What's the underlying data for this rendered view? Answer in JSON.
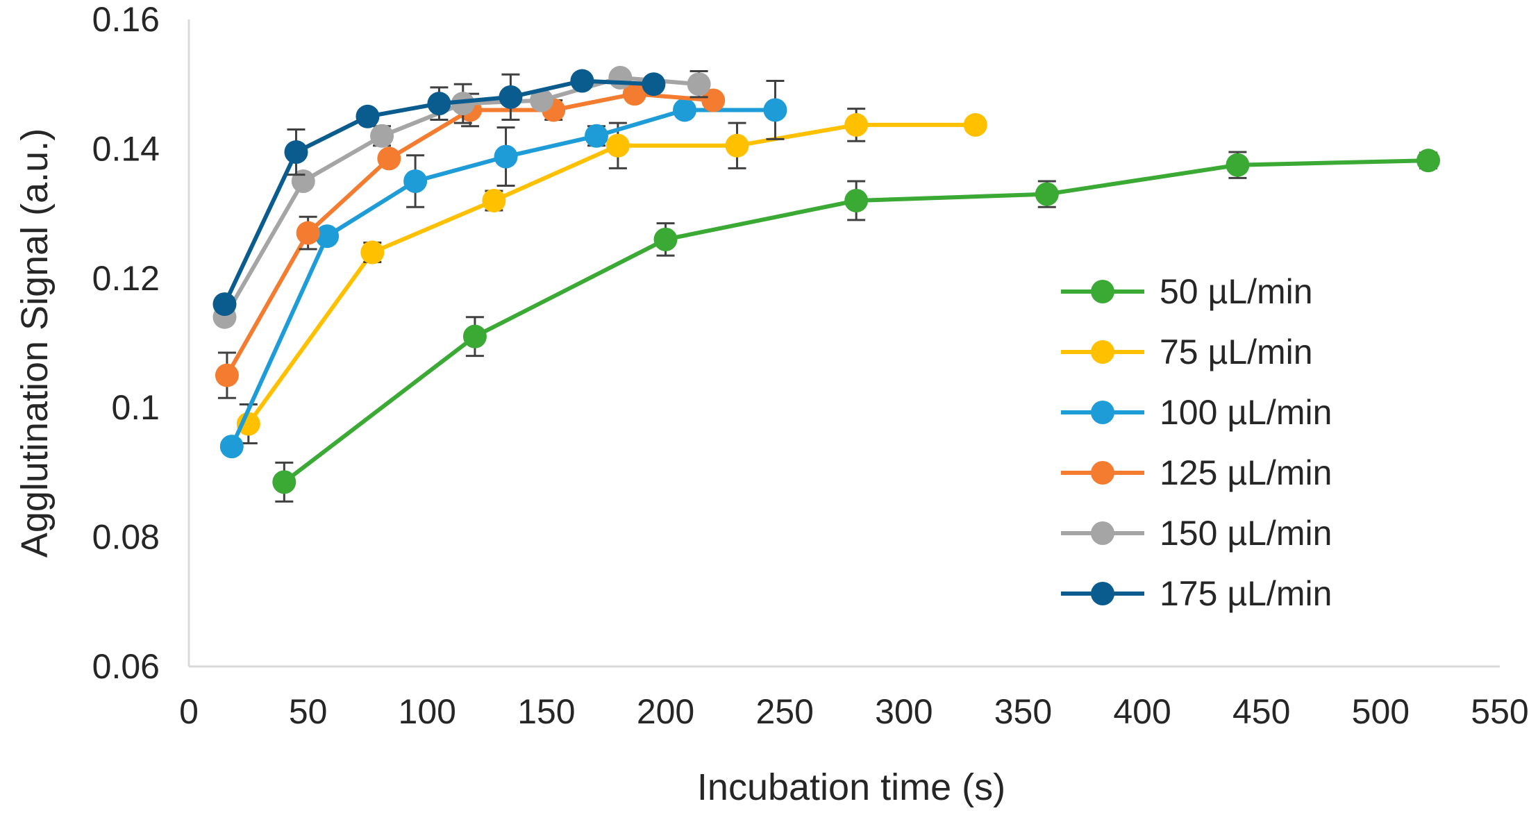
{
  "chart_data": {
    "type": "line",
    "title": "",
    "xlabel": "Incubation time (s)",
    "ylabel": "Agglutination Signal (a.u.)",
    "xlim": [
      0,
      550
    ],
    "ylim": [
      0.06,
      0.16
    ],
    "x_ticks": [
      0,
      50,
      100,
      150,
      200,
      250,
      300,
      350,
      400,
      450,
      500,
      550
    ],
    "x_tick_labels": [
      "0",
      "50",
      "100",
      "150",
      "200",
      "250",
      "300",
      "350",
      "400",
      "450",
      "500",
      "550"
    ],
    "y_ticks": [
      0.06,
      0.08,
      0.1,
      0.12,
      0.14,
      0.16
    ],
    "y_tick_labels": [
      "0.06",
      "0.08",
      "0.1",
      "0.12",
      "0.14",
      "0.16"
    ],
    "grid": false,
    "legend_position": "right",
    "series": [
      {
        "name": "50 µL/min",
        "color": "#3AAA35",
        "x": [
          40,
          120,
          200,
          280,
          360,
          440,
          520
        ],
        "y": [
          0.0885,
          0.111,
          0.126,
          0.132,
          0.133,
          0.1375,
          0.1382
        ],
        "err": [
          0.003,
          0.003,
          0.0025,
          0.003,
          0.002,
          0.002,
          0.0012
        ]
      },
      {
        "name": "75 µL/min",
        "color": "#FFC000",
        "x": [
          25,
          77,
          128,
          180,
          230,
          280,
          330
        ],
        "y": [
          0.0975,
          0.124,
          0.132,
          0.1405,
          0.1405,
          0.1437,
          0.1437
        ],
        "err": [
          0.003,
          0.0015,
          0.0015,
          0.0035,
          0.0035,
          0.0025,
          0.001
        ]
      },
      {
        "name": "100 µL/min",
        "color": "#1E9CD7",
        "x": [
          18,
          58,
          95,
          133,
          171,
          208,
          246
        ],
        "y": [
          0.094,
          0.1265,
          0.135,
          0.1388,
          0.142,
          0.146,
          0.146
        ],
        "err": [
          0.001,
          0.001,
          0.004,
          0.0045,
          0.0015,
          0.001,
          0.0045
        ]
      },
      {
        "name": "125 µL/min",
        "color": "#F47C30",
        "x": [
          16,
          50,
          84,
          118,
          153,
          187,
          220
        ],
        "y": [
          0.105,
          0.127,
          0.1385,
          0.146,
          0.146,
          0.1485,
          0.1475
        ],
        "err": [
          0.0035,
          0.0025,
          0.001,
          0.0025,
          0.0015,
          0.001,
          0.001
        ]
      },
      {
        "name": "150 µL/min",
        "color": "#A5A5A5",
        "x": [
          15,
          48,
          81,
          115,
          148,
          181,
          214
        ],
        "y": [
          0.114,
          0.135,
          0.142,
          0.147,
          0.1475,
          0.151,
          0.15
        ],
        "err": [
          0.001,
          0.001,
          0.0015,
          0.003,
          0.001,
          0.001,
          0.002
        ]
      },
      {
        "name": "175 µL/min",
        "color": "#0B5C8E",
        "x": [
          15,
          45,
          75,
          105,
          135,
          165,
          195
        ],
        "y": [
          0.116,
          0.1395,
          0.145,
          0.147,
          0.148,
          0.1505,
          0.15
        ],
        "err": [
          0.001,
          0.0035,
          0.001,
          0.0025,
          0.0035,
          0.001,
          0.001
        ]
      }
    ]
  }
}
